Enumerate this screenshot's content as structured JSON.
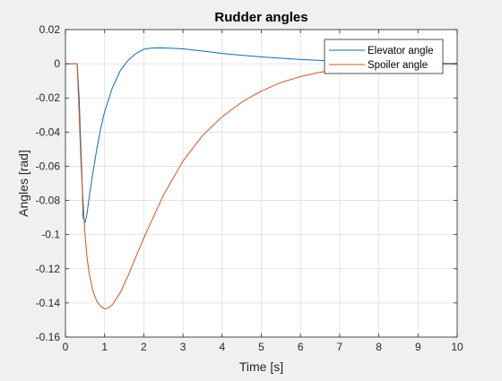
{
  "chart_data": {
    "type": "line",
    "title": "Rudder angles",
    "xlabel": "Time [s]",
    "ylabel": "Angles [rad]",
    "xlim": [
      0,
      10
    ],
    "ylim": [
      -0.16,
      0.02
    ],
    "xticks": [
      0,
      1,
      2,
      3,
      4,
      5,
      6,
      7,
      8,
      9,
      10
    ],
    "xtick_labels": [
      "0",
      "1",
      "2",
      "3",
      "4",
      "5",
      "6",
      "7",
      "8",
      "9",
      "10"
    ],
    "yticks": [
      0.02,
      0,
      -0.02,
      -0.04,
      -0.06,
      -0.08,
      -0.1,
      -0.12,
      -0.14,
      -0.16
    ],
    "ytick_labels": [
      "0.02",
      "0",
      "-0.02",
      "-0.04",
      "-0.06",
      "-0.08",
      "-0.1",
      "-0.12",
      "-0.14",
      "-0.16"
    ],
    "grid": true,
    "legend_position": "top-right",
    "series": [
      {
        "name": "Elevator angle",
        "color": "#0072BD",
        "x": [
          0,
          0.3,
          0.35,
          0.38,
          0.42,
          0.45,
          0.5,
          0.55,
          0.6,
          0.7,
          0.8,
          0.9,
          1.0,
          1.2,
          1.4,
          1.6,
          1.8,
          2.0,
          2.2,
          2.4,
          2.6,
          2.8,
          3.0,
          3.5,
          4.0,
          5.0,
          6.0,
          7.0,
          8.0,
          9.0,
          10.0
        ],
        "y": [
          0,
          0,
          -0.02,
          -0.04,
          -0.065,
          -0.09,
          -0.093,
          -0.088,
          -0.079,
          -0.064,
          -0.05,
          -0.038,
          -0.028,
          -0.014,
          -0.004,
          0.002,
          0.006,
          0.0085,
          0.0092,
          0.0093,
          0.0092,
          0.009,
          0.0087,
          0.0075,
          0.006,
          0.004,
          0.0025,
          0.0015,
          0.0008,
          0.0004,
          0.0001
        ]
      },
      {
        "name": "Spoiler angle",
        "color": "#D95319",
        "x": [
          0,
          0.3,
          0.35,
          0.4,
          0.45,
          0.5,
          0.55,
          0.6,
          0.7,
          0.8,
          0.9,
          1.0,
          1.1,
          1.2,
          1.4,
          1.6,
          1.8,
          2.0,
          2.5,
          3.0,
          3.5,
          4.0,
          4.5,
          5.0,
          5.5,
          6.0,
          6.5,
          7.0,
          7.5,
          8.0,
          8.5,
          9.0,
          9.5,
          10.0
        ],
        "y": [
          0,
          0,
          -0.03,
          -0.06,
          -0.08,
          -0.1,
          -0.113,
          -0.122,
          -0.133,
          -0.139,
          -0.142,
          -0.1435,
          -0.143,
          -0.141,
          -0.134,
          -0.124,
          -0.113,
          -0.102,
          -0.077,
          -0.057,
          -0.042,
          -0.031,
          -0.0225,
          -0.016,
          -0.011,
          -0.0075,
          -0.005,
          -0.0033,
          -0.0021,
          -0.0013,
          -0.0008,
          -0.0005,
          -0.0003,
          -0.0002
        ]
      }
    ]
  }
}
